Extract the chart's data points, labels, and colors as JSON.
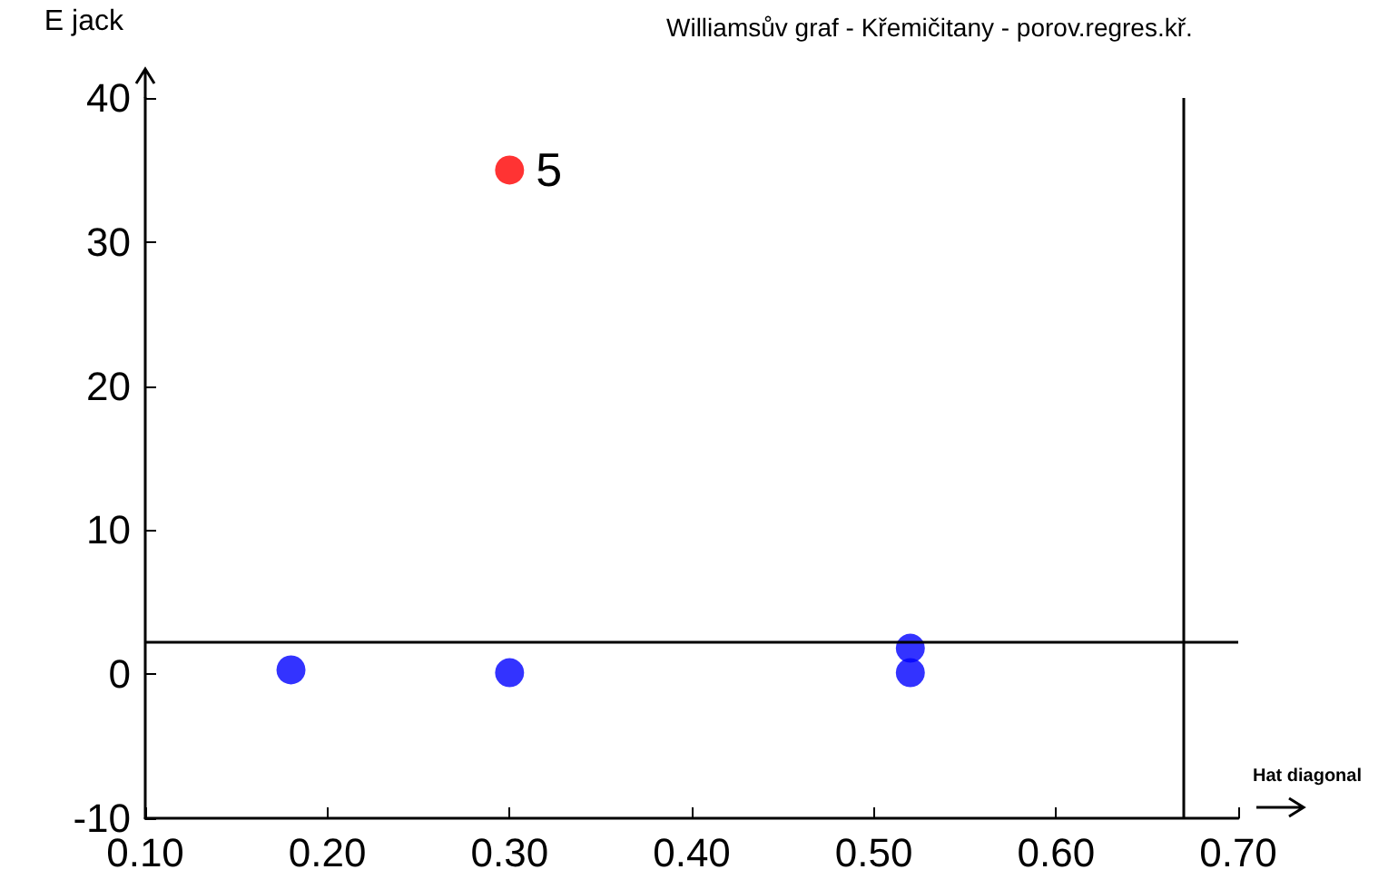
{
  "chart_data": {
    "type": "scatter",
    "subtitle": "Williamsův graf - Křemičitany - porov.regres.kř.",
    "xlabel": "Hat diagonal",
    "ylabel": "E jack",
    "series": [
      {
        "color": "#0000ff",
        "x": [
          0.18,
          0.3,
          0.52,
          0.52
        ],
        "values": [
          0.3,
          0.1,
          1.8,
          0.1
        ]
      },
      {
        "color": "#ff0000",
        "x": [
          0.3
        ],
        "values": [
          35
        ]
      }
    ],
    "annotations": [
      {
        "text": "5",
        "x": 0.3,
        "y": 35
      }
    ],
    "ref_lines": [
      {
        "axis": "y",
        "value": 2.2,
        "color": "#000000"
      },
      {
        "axis": "x",
        "value": 0.67,
        "color": "#000000"
      }
    ],
    "xlim": [
      0.1,
      0.7
    ],
    "xticks": [
      {
        "value": 0.1,
        "label": "0.10"
      },
      {
        "value": 0.2,
        "label": "0.20"
      },
      {
        "value": 0.3,
        "label": "0.30"
      },
      {
        "value": 0.4,
        "label": "0.40"
      },
      {
        "value": 0.5,
        "label": "0.50"
      },
      {
        "value": 0.6,
        "label": "0.60"
      },
      {
        "value": 0.7,
        "label": "0.70"
      }
    ],
    "ylim": [
      -10,
      40
    ],
    "yticks": [
      -10,
      0,
      10,
      20,
      30,
      40
    ],
    "grid": false,
    "marker": "circle"
  }
}
